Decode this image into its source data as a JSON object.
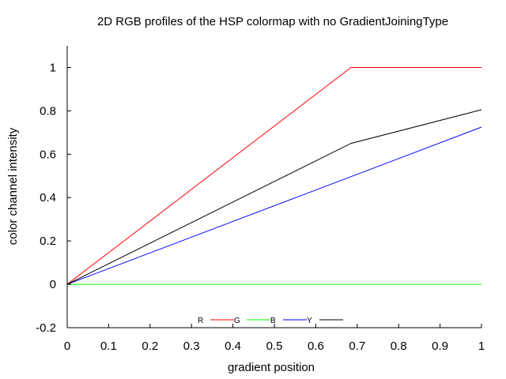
{
  "chart_data": {
    "type": "line",
    "title": "2D RGB profiles of the HSP colormap with no GradientJoiningType",
    "xlabel": "gradient position",
    "ylabel": "color channel intensity",
    "xlim": [
      0,
      1
    ],
    "ylim": [
      -0.2,
      1.1
    ],
    "xticks": [
      "0",
      "0.1",
      "0.2",
      "0.3",
      "0.4",
      "0.5",
      "0.6",
      "0.7",
      "0.8",
      "0.9",
      "1"
    ],
    "yticks": [
      "-0.2",
      "0",
      "0.2",
      "0.4",
      "0.6",
      "0.8",
      "1"
    ],
    "xtick_values": [
      0,
      0.1,
      0.2,
      0.3,
      0.4,
      0.5,
      0.6,
      0.7,
      0.8,
      0.9,
      1
    ],
    "ytick_values": [
      -0.2,
      0,
      0.2,
      0.4,
      0.6,
      0.8,
      1
    ],
    "grid": false,
    "legend_position": "bottom-center",
    "series": [
      {
        "name": "R",
        "color": "#ff0000",
        "x": [
          0,
          0.685,
          1
        ],
        "y": [
          0,
          1,
          1
        ]
      },
      {
        "name": "G",
        "color": "#00ff00",
        "x": [
          0,
          1
        ],
        "y": [
          0,
          0
        ]
      },
      {
        "name": "B",
        "color": "#0000ff",
        "x": [
          0,
          1
        ],
        "y": [
          0,
          0.725
        ]
      },
      {
        "name": "Y",
        "color": "#000000",
        "x": [
          0,
          0.685,
          1
        ],
        "y": [
          0,
          0.65,
          0.805
        ]
      }
    ]
  }
}
